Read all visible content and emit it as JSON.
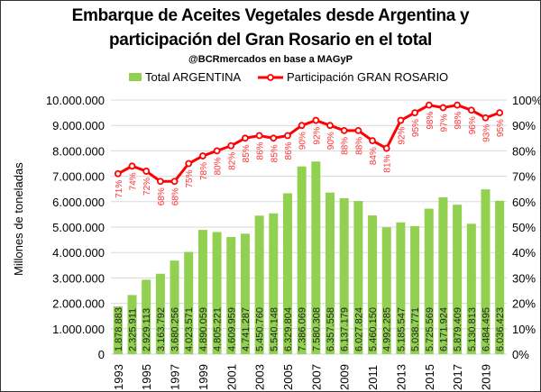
{
  "chart_data": {
    "type": "bar+line",
    "title_line1": "Embarque de Aceites Vegetales desde Argentina y",
    "title_line2": "participación del Gran Rosario en el total",
    "subtitle": "@BCRmercados en base a MAGyP",
    "ylabel": "Millones de toneladas",
    "ylim": [
      0,
      10000000
    ],
    "y2lim": [
      0,
      100
    ],
    "left_ticks": [
      "0",
      "1.000.000",
      "2.000.000",
      "3.000.000",
      "4.000.000",
      "5.000.000",
      "6.000.000",
      "7.000.000",
      "8.000.000",
      "9.000.000",
      "10.000.000"
    ],
    "right_ticks": [
      "0%",
      "10%",
      "20%",
      "30%",
      "40%",
      "50%",
      "60%",
      "70%",
      "80%",
      "90%",
      "100%"
    ],
    "categories": [
      "1993",
      "1994",
      "1995",
      "1996",
      "1997",
      "1998",
      "1999",
      "2000",
      "2001",
      "2002",
      "2003",
      "2004",
      "2005",
      "2006",
      "2007",
      "2008",
      "2009",
      "2010",
      "2011",
      "2012",
      "2013",
      "2014",
      "2015",
      "2016",
      "2017",
      "2018",
      "2019",
      "2020"
    ],
    "x_tick_labels": [
      "1993",
      "1995",
      "1997",
      "1999",
      "2001",
      "2003",
      "2005",
      "2007",
      "2009",
      "2011",
      "2013",
      "2015",
      "2017",
      "2019"
    ],
    "series": [
      {
        "name": "Total ARGENTINA",
        "type": "bar",
        "color": "#92d050",
        "values": [
          1878883,
          2325911,
          2929113,
          3163792,
          3680256,
          4023571,
          4890059,
          4805221,
          4609959,
          4741287,
          5450760,
          5540148,
          6329804,
          7386069,
          7580308,
          6357558,
          6137179,
          6027824,
          5460150,
          4992285,
          5185547,
          5038771,
          5725569,
          6171924,
          5879409,
          5130813,
          6484495,
          6036423
        ],
        "labels": [
          "1.878.883",
          "2.325.911",
          "2.929.113",
          "3.163.792",
          "3.680.256",
          "4.023.571",
          "4.890.059",
          "4.805.221",
          "4.609.959",
          "4.741.287",
          "5.450.760",
          "5.540.148",
          "6.329.804",
          "7.386.069",
          "7.580.308",
          "6.357.558",
          "6.137.179",
          "6.027.824",
          "5.460.150",
          "4.992.285",
          "5.185.547",
          "5.038.771",
          "5.725.569",
          "6.171.924",
          "5.879.409",
          "5.130.813",
          "6.484.495",
          "6.036.423"
        ]
      },
      {
        "name": "Participación GRAN ROSARIO",
        "type": "line",
        "color": "#ff0000",
        "axis": "right",
        "values": [
          71,
          74,
          72,
          68,
          68,
          75,
          78,
          80,
          82,
          85,
          86,
          85,
          86,
          90,
          92,
          90,
          88,
          88,
          84,
          81,
          92,
          95,
          98,
          97,
          98,
          96,
          93,
          95
        ],
        "labels": [
          "71%",
          "74%",
          "72%",
          "68%",
          "68%",
          "75%",
          "78%",
          "80%",
          "82%",
          "85%",
          "86%",
          "85%",
          "86%",
          "90%",
          "92%",
          "90%",
          "88%",
          "88%",
          "84%",
          "81%",
          "92%",
          "95%",
          "98%",
          "97%",
          "98%",
          "96%",
          "93%",
          "95%"
        ]
      }
    ],
    "legend": "top",
    "grid": true
  }
}
